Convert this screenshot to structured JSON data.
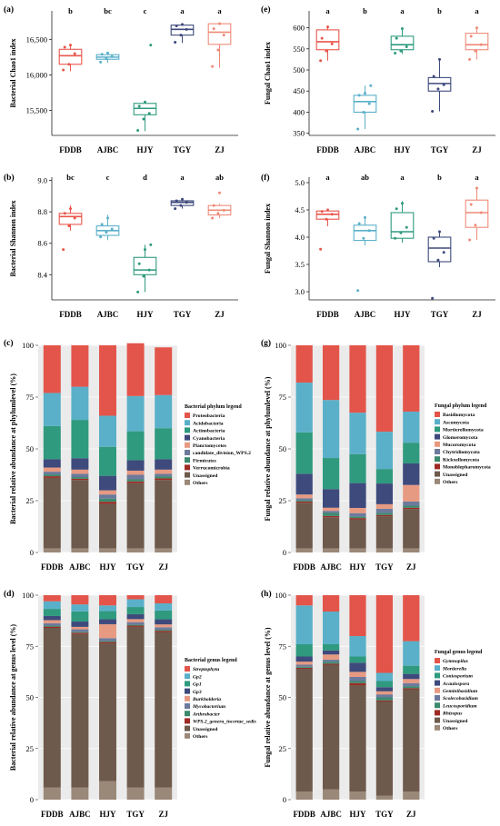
{
  "categories": [
    "FDDB",
    "AJBC",
    "HJY",
    "TGY",
    "ZJ"
  ],
  "colors": {
    "FDDB": "#e8574c",
    "AJBC": "#5bb0c9",
    "HJY": "#2f9a7e",
    "TGY": "#3e4a7c",
    "ZJ": "#ee8b78"
  },
  "panels": {
    "a": {
      "letter": "(a)",
      "ylabel": "Bacterial Chao1 index"
    },
    "b": {
      "letter": "(b)",
      "ylabel": "Bacterial Shannon index"
    },
    "c": {
      "letter": "(c)",
      "ylabel": "Bacterial relative abundance at phylumlevel (%)",
      "legend_title": "Bacterial phylum legend"
    },
    "d": {
      "letter": "(d)",
      "ylabel": "Bacterial relative abundance at genus level (%)",
      "legend_title": "Bacterial genus legend"
    },
    "e": {
      "letter": "(e)",
      "ylabel": "Fungal Chao1 index"
    },
    "f": {
      "letter": "(f)",
      "ylabel": "Fungal Shannon index"
    },
    "g": {
      "letter": "(g)",
      "ylabel": "Fungal relative abundance at phylumlevel (%)",
      "legend_title": "Fungal phylum legend"
    },
    "h": {
      "letter": "(h)",
      "ylabel": "Fungal relative abundance at genus level (%)",
      "legend_title": "Fungal genus legend"
    }
  },
  "chart_data": [
    {
      "id": "a",
      "type": "box",
      "title": "",
      "ylabel": "Bacterial Chao1 index",
      "ylim": [
        15150,
        16950
      ],
      "yticks": [
        15500,
        16000,
        16500
      ],
      "ytick_labels": [
        "15,500",
        "16,000",
        "16,500"
      ],
      "significance": [
        "b",
        "bc",
        "c",
        "a",
        "a"
      ],
      "boxes": [
        {
          "q1": 16150,
          "median": 16270,
          "q3": 16360,
          "min": 16050,
          "max": 16420
        },
        {
          "q1": 16220,
          "median": 16250,
          "q3": 16285,
          "min": 16170,
          "max": 16320
        },
        {
          "q1": 15440,
          "median": 15530,
          "q3": 15600,
          "min": 15210,
          "max": 15630
        },
        {
          "q1": 16560,
          "median": 16640,
          "q3": 16700,
          "min": 16450,
          "max": 16720
        },
        {
          "q1": 16430,
          "median": 16600,
          "q3": 16720,
          "min": 16100,
          "max": 16740
        }
      ],
      "points": [
        [
          16070,
          16150,
          16300,
          16390,
          16420
        ],
        [
          16180,
          16230,
          16260,
          16290,
          16310
        ],
        [
          15220,
          15380,
          15460,
          15560,
          15620,
          16420
        ],
        [
          16460,
          16560,
          16640,
          16690,
          16710
        ],
        [
          16120,
          16350,
          16560,
          16650,
          16720
        ]
      ]
    },
    {
      "id": "b",
      "type": "box",
      "title": "",
      "ylabel": "Bacterial Shannon index",
      "ylim": [
        8.24,
        9.02
      ],
      "yticks": [
        8.4,
        8.6,
        8.8,
        9.0
      ],
      "ytick_labels": [
        "8.4",
        "8.6",
        "8.8",
        "9.0"
      ],
      "significance": [
        "bc",
        "c",
        "d",
        "a",
        "ab"
      ],
      "boxes": [
        {
          "q1": 8.72,
          "median": 8.77,
          "q3": 8.79,
          "min": 8.68,
          "max": 8.84
        },
        {
          "q1": 8.65,
          "median": 8.68,
          "q3": 8.71,
          "min": 8.62,
          "max": 8.78
        },
        {
          "q1": 8.4,
          "median": 8.43,
          "q3": 8.51,
          "min": 8.29,
          "max": 8.59
        },
        {
          "q1": 8.84,
          "median": 8.86,
          "q3": 8.87,
          "min": 8.82,
          "max": 8.88
        },
        {
          "q1": 8.78,
          "median": 8.81,
          "q3": 8.84,
          "min": 8.76,
          "max": 8.85
        }
      ],
      "points": [
        [
          8.56,
          8.71,
          8.76,
          8.79,
          8.82
        ],
        [
          8.64,
          8.67,
          8.69,
          8.72,
          8.76
        ],
        [
          8.29,
          8.39,
          8.43,
          8.47,
          8.56,
          8.59
        ],
        [
          8.82,
          8.84,
          8.86,
          8.87,
          8.88
        ],
        [
          8.76,
          8.79,
          8.81,
          8.84,
          8.92
        ]
      ]
    },
    {
      "id": "e",
      "type": "box",
      "title": "",
      "ylabel": "Fungal Chao1 index",
      "ylim": [
        345,
        640
      ],
      "yticks": [
        350,
        400,
        450,
        500,
        550,
        600
      ],
      "ytick_labels": [
        "350",
        "400",
        "450",
        "500",
        "550",
        "600"
      ],
      "significance": [
        "a",
        "b",
        "a",
        "b",
        "a"
      ],
      "boxes": [
        {
          "q1": 548,
          "median": 567,
          "q3": 595,
          "min": 522,
          "max": 605
        },
        {
          "q1": 400,
          "median": 425,
          "q3": 440,
          "min": 360,
          "max": 463
        },
        {
          "q1": 548,
          "median": 560,
          "q3": 580,
          "min": 538,
          "max": 598
        },
        {
          "q1": 450,
          "median": 468,
          "q3": 482,
          "min": 402,
          "max": 528
        },
        {
          "q1": 548,
          "median": 560,
          "q3": 587,
          "min": 525,
          "max": 600
        }
      ],
      "points": [
        [
          522,
          545,
          562,
          575,
          602
        ],
        [
          360,
          400,
          420,
          440,
          445,
          463
        ],
        [
          540,
          545,
          555,
          575,
          598
        ],
        [
          402,
          455,
          465,
          485,
          525
        ],
        [
          525,
          545,
          560,
          580,
          600
        ]
      ]
    },
    {
      "id": "f",
      "type": "box",
      "title": "",
      "ylabel": "Fungal Shannon index",
      "ylim": [
        2.85,
        5.1
      ],
      "yticks": [
        3.0,
        3.5,
        4.0,
        4.5,
        5.0
      ],
      "ytick_labels": [
        "3.0",
        "3.5",
        "4.0",
        "4.5",
        "5.0"
      ],
      "significance": [
        "a",
        "ab",
        "a",
        "b",
        "a"
      ],
      "boxes": [
        {
          "q1": 4.33,
          "median": 4.42,
          "q3": 4.48,
          "min": 4.2,
          "max": 4.52
        },
        {
          "q1": 3.94,
          "median": 4.12,
          "q3": 4.22,
          "min": 3.85,
          "max": 4.38
        },
        {
          "q1": 3.98,
          "median": 4.1,
          "q3": 4.45,
          "min": 3.9,
          "max": 4.66
        },
        {
          "q1": 3.55,
          "median": 3.8,
          "q3": 4.0,
          "min": 3.45,
          "max": 4.12
        },
        {
          "q1": 4.18,
          "median": 4.45,
          "q3": 4.68,
          "min": 3.95,
          "max": 4.9
        }
      ],
      "points": [
        [
          3.78,
          4.33,
          4.42,
          4.47,
          4.5
        ],
        [
          3.02,
          3.98,
          4.12,
          4.25,
          4.36
        ],
        [
          3.98,
          4.08,
          4.18,
          4.52,
          4.62
        ],
        [
          2.88,
          3.58,
          3.72,
          3.98,
          4.1
        ],
        [
          3.95,
          4.22,
          4.45,
          4.6,
          4.9
        ]
      ]
    },
    {
      "id": "c",
      "type": "stacked-bar",
      "title": "",
      "ylabel": "Bacterial relative abundance at phylumlevel (%)",
      "ylim": [
        0,
        100
      ],
      "yticks": [
        0,
        25,
        50,
        75,
        100
      ],
      "legend_title": "Bacterial phylum legend",
      "series": [
        {
          "name": "Others",
          "color": "#9a8878",
          "values": [
            2,
            2,
            2,
            2,
            2
          ]
        },
        {
          "name": "Unassigned",
          "color": "#6e5a4c",
          "values": [
            34,
            33,
            21.5,
            31.5,
            33
          ]
        },
        {
          "name": "Verrucomicrobia",
          "color": "#9e2a24",
          "values": [
            0.8,
            0.6,
            1,
            0.8,
            0.8
          ]
        },
        {
          "name": "Firmicutes",
          "color": "#3d8a6f",
          "values": [
            0.9,
            0.8,
            1.5,
            1,
            1
          ]
        },
        {
          "name": "candidate_division_WPS.2",
          "color": "#6d7a9c",
          "values": [
            1.3,
            1.6,
            2,
            2.2,
            1.2
          ]
        },
        {
          "name": "Planctomycetes",
          "color": "#e79a82",
          "values": [
            2,
            2,
            2,
            2,
            2
          ]
        },
        {
          "name": "Cyanobacteria",
          "color": "#3e4a7c",
          "values": [
            4,
            5.5,
            7,
            5,
            5
          ]
        },
        {
          "name": "Actinobacteria",
          "color": "#2f9a7e",
          "values": [
            16,
            18.5,
            14,
            14,
            15
          ]
        },
        {
          "name": "Acidobacteria",
          "color": "#5bb0c9",
          "values": [
            16,
            16,
            15,
            17,
            16
          ]
        },
        {
          "name": "Proteobacteria",
          "color": "#e3554a",
          "values": [
            23,
            20,
            34,
            25.5,
            23
          ]
        }
      ]
    },
    {
      "id": "g",
      "type": "stacked-bar",
      "title": "",
      "ylabel": "Fungal relative abundance at phylumlevel (%)",
      "ylim": [
        0,
        100
      ],
      "yticks": [
        0,
        25,
        50,
        75,
        100
      ],
      "legend_title": "Fungal phylum legend",
      "series": [
        {
          "name": "Others",
          "color": "#9a8878",
          "values": [
            2,
            2,
            2,
            2,
            2
          ]
        },
        {
          "name": "Unassigned",
          "color": "#6e5a4c",
          "values": [
            22,
            15,
            14,
            15.5,
            19
          ]
        },
        {
          "name": "Monoblepharomycota",
          "color": "#9e2a24",
          "values": [
            0.6,
            0.6,
            0.6,
            0.6,
            0.6
          ]
        },
        {
          "name": "Kickxellomycota",
          "color": "#3d8a6f",
          "values": [
            0.6,
            1.5,
            0.8,
            1,
            1
          ]
        },
        {
          "name": "Chytridiomycota",
          "color": "#6d7a9c",
          "values": [
            1,
            1,
            1.6,
            2,
            2
          ]
        },
        {
          "name": "Mucoromycota",
          "color": "#e79a82",
          "values": [
            1.8,
            1.5,
            2.5,
            2.2,
            8
          ]
        },
        {
          "name": "Glomeromycota",
          "color": "#3e4a7c",
          "values": [
            10,
            9,
            12,
            10,
            10.4
          ]
        },
        {
          "name": "Mortierellomycota",
          "color": "#2f9a7e",
          "values": [
            20,
            15,
            14,
            7,
            10
          ]
        },
        {
          "name": "Ascomycota",
          "color": "#5bb0c9",
          "values": [
            24,
            28,
            20,
            18,
            15
          ]
        },
        {
          "name": "Basidiomycota",
          "color": "#e3554a",
          "values": [
            18,
            26.4,
            32.5,
            41.7,
            32
          ]
        }
      ]
    },
    {
      "id": "d",
      "type": "stacked-bar",
      "title": "",
      "ylabel": "Bacterial relative abundance at genus level (%)",
      "ylim": [
        0,
        100
      ],
      "yticks": [
        0,
        25,
        50,
        75,
        100
      ],
      "legend_title": "Bacterial genus legend",
      "series": [
        {
          "name": "Others",
          "color": "#9a8878",
          "values": [
            6,
            6,
            9,
            6,
            6
          ]
        },
        {
          "name": "Unassigned",
          "color": "#6e5a4c",
          "values": [
            78,
            75,
            67.5,
            78.5,
            76
          ]
        },
        {
          "name": "WPS.2_genera_incertae_sedis",
          "color": "#9e2a24",
          "values": [
            0.6,
            0.6,
            0.6,
            0.6,
            0.6
          ],
          "italic": true
        },
        {
          "name": "Arthrobacter",
          "color": "#3d8a6f",
          "values": [
            0.5,
            0.5,
            0.5,
            0.5,
            0.5
          ],
          "italic": true
        },
        {
          "name": "Mycobacterium",
          "color": "#6d7a9c",
          "values": [
            1.2,
            1.2,
            1.4,
            1.2,
            1.2
          ],
          "italic": true
        },
        {
          "name": "Burkholderia",
          "color": "#e79a82",
          "values": [
            1.5,
            1.2,
            6.8,
            1.5,
            1.4
          ],
          "italic": true
        },
        {
          "name": "Gp3",
          "color": "#3e4a7c",
          "values": [
            2,
            2.6,
            2.4,
            2.4,
            2.5
          ],
          "italic": true
        },
        {
          "name": "Gp1",
          "color": "#2f9a7e",
          "values": [
            3.5,
            5,
            4,
            3.5,
            4.3
          ],
          "italic": true
        },
        {
          "name": "Gp2",
          "color": "#5bb0c9",
          "values": [
            3.7,
            3.4,
            2.8,
            3.8,
            3.5
          ],
          "italic": true
        },
        {
          "name": "Streptophyta",
          "color": "#e3554a",
          "values": [
            3,
            4.5,
            5,
            2,
            4
          ],
          "italic": true
        }
      ]
    },
    {
      "id": "h",
      "type": "stacked-bar",
      "title": "",
      "ylabel": "Fungal relative abundance at genus level (%)",
      "ylim": [
        0,
        100
      ],
      "yticks": [
        0,
        25,
        50,
        75,
        100
      ],
      "legend_title": "Fungal genus legend",
      "series": [
        {
          "name": "Others",
          "color": "#9a8878",
          "values": [
            4,
            5,
            4,
            2,
            4
          ]
        },
        {
          "name": "Unassigned",
          "color": "#6e5a4c",
          "values": [
            60,
            61,
            52,
            46,
            50
          ]
        },
        {
          "name": "Rhizopus",
          "color": "#9e2a24",
          "values": [
            0.5,
            0.5,
            1,
            0.5,
            0.5
          ],
          "italic": true
        },
        {
          "name": "Leucosporidium",
          "color": "#3d8a6f",
          "values": [
            0.5,
            1,
            1,
            1.5,
            1
          ],
          "italic": true
        },
        {
          "name": "Scolecobasidium",
          "color": "#6d7a9c",
          "values": [
            1,
            1,
            2,
            1.5,
            1.5
          ],
          "italic": true
        },
        {
          "name": "Geminibasidium",
          "color": "#e79a82",
          "values": [
            1.5,
            2.5,
            2.5,
            1.5,
            2
          ],
          "italic": true
        },
        {
          "name": "Acaulospora",
          "color": "#3e4a7c",
          "values": [
            2.5,
            2,
            4.5,
            2,
            2.5
          ],
          "italic": true
        },
        {
          "name": "Coniosporium",
          "color": "#2f9a7e",
          "values": [
            6,
            3,
            3,
            3,
            4
          ],
          "italic": true
        },
        {
          "name": "Mortierella",
          "color": "#5bb0c9",
          "values": [
            19,
            16,
            10,
            4,
            12
          ],
          "italic": true
        },
        {
          "name": "Gymnopilus",
          "color": "#e3554a",
          "values": [
            5,
            8,
            20,
            38,
            22.5
          ],
          "italic": true
        }
      ]
    }
  ]
}
